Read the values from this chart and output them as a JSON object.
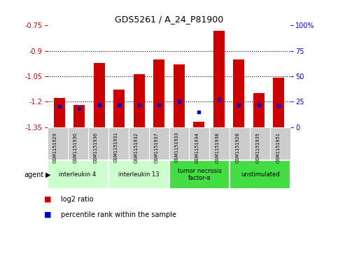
{
  "title": "GDS5261 / A_24_P81900",
  "samples": [
    "GSM1151929",
    "GSM1151930",
    "GSM1151936",
    "GSM1151931",
    "GSM1151932",
    "GSM1151937",
    "GSM1151933",
    "GSM1151934",
    "GSM1151938",
    "GSM1151928",
    "GSM1151935",
    "GSM1151951"
  ],
  "log2_values": [
    -1.18,
    -1.22,
    -0.97,
    -1.13,
    -1.04,
    -0.95,
    -0.98,
    -1.32,
    -0.78,
    -0.95,
    -1.15,
    -1.06
  ],
  "percentile_values": [
    20,
    18,
    22,
    22,
    22,
    22,
    25,
    15,
    27,
    22,
    22,
    21
  ],
  "bar_bottom": -1.35,
  "ylim_left": [
    -1.35,
    -0.75
  ],
  "ylim_right": [
    0,
    100
  ],
  "yticks_left": [
    -1.35,
    -1.2,
    -1.05,
    -0.9,
    -0.75
  ],
  "yticks_right": [
    0,
    25,
    50,
    75,
    100
  ],
  "ytick_labels_left": [
    "-1.35",
    "-1.2",
    "-1.05",
    "-0.9",
    "-0.75"
  ],
  "ytick_labels_right": [
    "0",
    "25",
    "50",
    "75",
    "100%"
  ],
  "hlines": [
    -0.9,
    -1.05,
    -1.2
  ],
  "bar_color": "#cc0000",
  "dot_color": "#0000cc",
  "agent_groups": [
    {
      "label": "interleukin 4",
      "start": 0,
      "end": 3,
      "color": "#ccffcc"
    },
    {
      "label": "interleukin 13",
      "start": 3,
      "end": 6,
      "color": "#ccffcc"
    },
    {
      "label": "tumor necrosis\nfactor-α",
      "start": 6,
      "end": 9,
      "color": "#44dd44"
    },
    {
      "label": "unstimulated",
      "start": 9,
      "end": 12,
      "color": "#44dd44"
    }
  ],
  "bg_color": "#ffffff",
  "bar_color_left": "#cc0000",
  "tick_color_left": "#cc0000",
  "tick_color_right": "#0000cc",
  "bar_width": 0.55,
  "xticklabel_bg": "#cccccc"
}
